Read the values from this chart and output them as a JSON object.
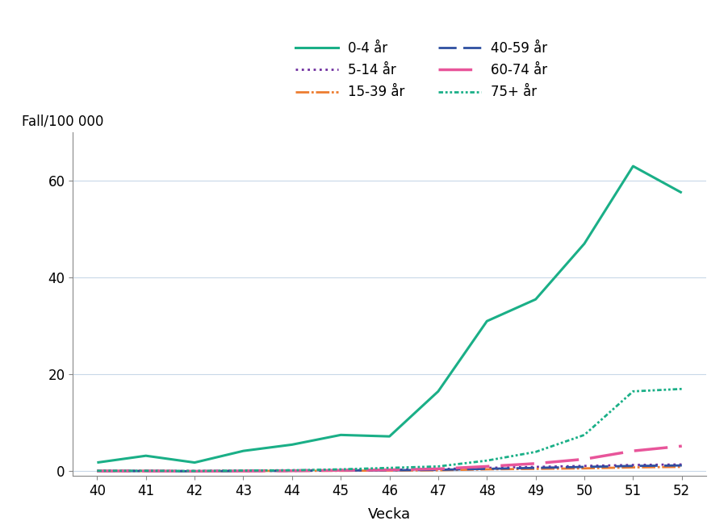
{
  "weeks": [
    40,
    41,
    42,
    43,
    44,
    45,
    46,
    47,
    48,
    49,
    50,
    51,
    52
  ],
  "series_order": [
    "0-4 år",
    "5-14 år",
    "15-39 år",
    "40-59 år",
    "60-74 år",
    "75+ år"
  ],
  "series": {
    "0-4 år": {
      "values": [
        1.8,
        3.2,
        1.8,
        4.2,
        5.5,
        7.5,
        7.2,
        16.5,
        31.0,
        35.5,
        47.0,
        63.0,
        57.5
      ],
      "color": "#1aaf87",
      "ls": "solid",
      "dashes": null,
      "lw": 2.2
    },
    "5-14 år": {
      "values": [
        0.1,
        0.1,
        0.05,
        0.15,
        0.2,
        0.25,
        0.3,
        0.45,
        0.7,
        0.9,
        1.1,
        1.3,
        1.4
      ],
      "color": "#7030a0",
      "ls": "dotted",
      "dashes": null,
      "lw": 2.0
    },
    "15-39 år": {
      "values": [
        0.05,
        0.05,
        0.0,
        0.05,
        0.1,
        0.1,
        0.15,
        0.2,
        0.4,
        0.5,
        0.6,
        0.8,
        0.9
      ],
      "color": "#ed7d31",
      "ls": "dashdot",
      "dashes": [
        6,
        1,
        1,
        1
      ],
      "lw": 2.0
    },
    "40-59 år": {
      "values": [
        0.05,
        0.05,
        0.0,
        0.05,
        0.1,
        0.15,
        0.2,
        0.3,
        0.5,
        0.7,
        0.9,
        1.1,
        1.2
      ],
      "color": "#2e4fa0",
      "ls": "dashed",
      "dashes": [
        8,
        3
      ],
      "lw": 2.0
    },
    "60-74 år": {
      "values": [
        0.05,
        0.05,
        0.0,
        0.05,
        0.1,
        0.2,
        0.3,
        0.5,
        1.0,
        1.6,
        2.5,
        4.2,
        5.2
      ],
      "color": "#e8559a",
      "ls": "dashed",
      "dashes": [
        12,
        4
      ],
      "lw": 2.5
    },
    "75+ år": {
      "values": [
        0.1,
        0.1,
        0.05,
        0.15,
        0.2,
        0.4,
        0.7,
        1.0,
        2.2,
        4.0,
        7.5,
        16.5,
        17.0
      ],
      "color": "#1aaf87",
      "ls": "dashdot",
      "dashes": [
        2,
        1,
        1,
        1,
        1,
        1
      ],
      "lw": 2.0
    }
  },
  "xlabel": "Vecka",
  "ylabel": "Fall/100 000",
  "xlim": [
    39.5,
    52.5
  ],
  "ylim": [
    -1,
    70
  ],
  "yticks": [
    0,
    20,
    40,
    60
  ],
  "xticks": [
    40,
    41,
    42,
    43,
    44,
    45,
    46,
    47,
    48,
    49,
    50,
    51,
    52
  ],
  "background_color": "#ffffff",
  "grid_color": "#c8d8e8",
  "fontsize": 12,
  "legend_left": [
    "0-4 år",
    "15-39 år",
    "60-74 år"
  ],
  "legend_right": [
    "5-14 år",
    "40-59 år",
    "75+ år"
  ]
}
